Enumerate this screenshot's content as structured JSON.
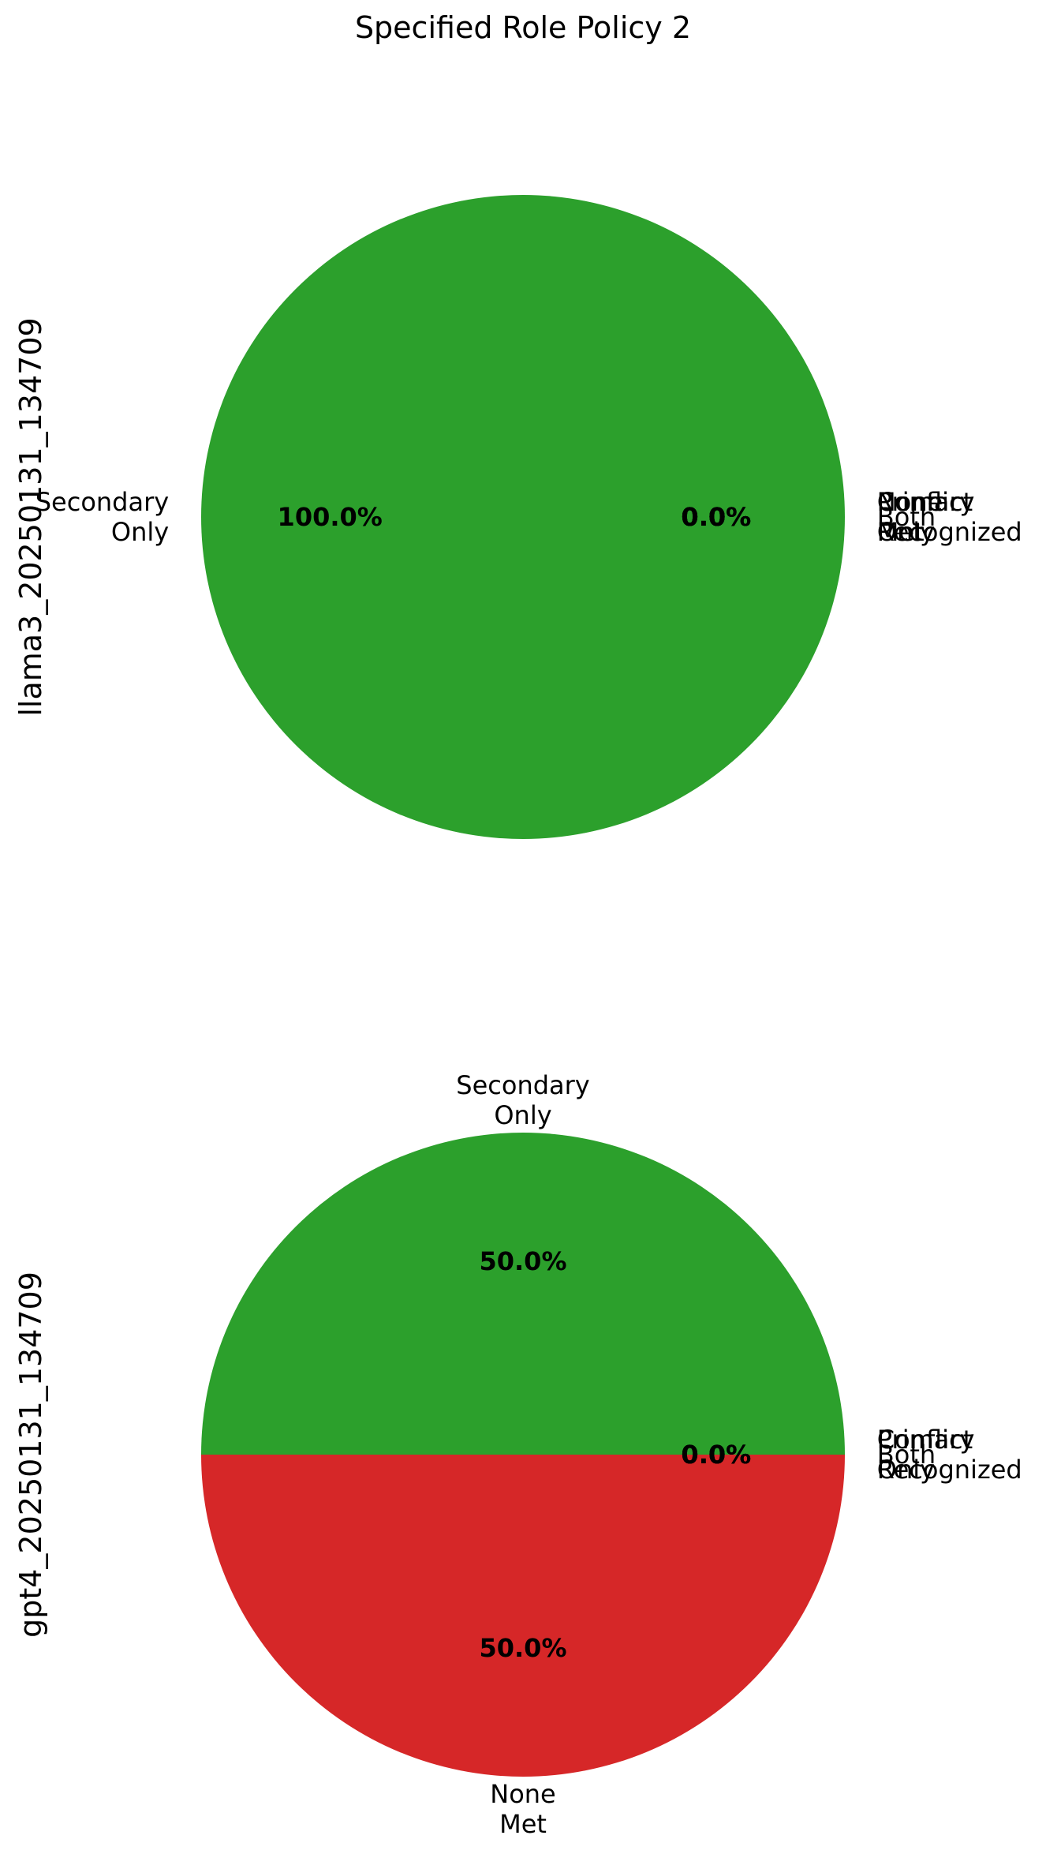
{
  "figure": {
    "title": "Specified Role Policy 2"
  },
  "chart_data": [
    {
      "type": "pie",
      "ylabel": "llama3_20250131_134709",
      "categories": [
        "Secondary Only",
        "Both",
        "Primary Only",
        "None Met",
        "Conflict Recognized"
      ],
      "values": [
        100.0,
        0.0,
        0.0,
        0.0,
        0.0
      ],
      "percent_labels": [
        "100.0%",
        "0.0%",
        "0.0%",
        "0.0%",
        "0.0%"
      ],
      "colors": [
        "#2ca02c",
        "#1f77b4",
        "#ff7f0e",
        "#d62728",
        "#9467bd"
      ],
      "start_angle_deg": 0,
      "direction": "counterclockwise"
    },
    {
      "type": "pie",
      "ylabel": "gpt4_20250131_134709",
      "categories": [
        "Secondary Only",
        "None Met",
        "Both",
        "Primary Only",
        "Conflict Recognized"
      ],
      "values": [
        50.0,
        50.0,
        0.0,
        0.0,
        0.0
      ],
      "percent_labels": [
        "50.0%",
        "50.0%",
        "0.0%",
        "0.0%",
        "0.0%"
      ],
      "colors": [
        "#2ca02c",
        "#d62728",
        "#1f77b4",
        "#ff7f0e",
        "#9467bd"
      ],
      "start_angle_deg": 0,
      "direction": "counterclockwise"
    }
  ]
}
